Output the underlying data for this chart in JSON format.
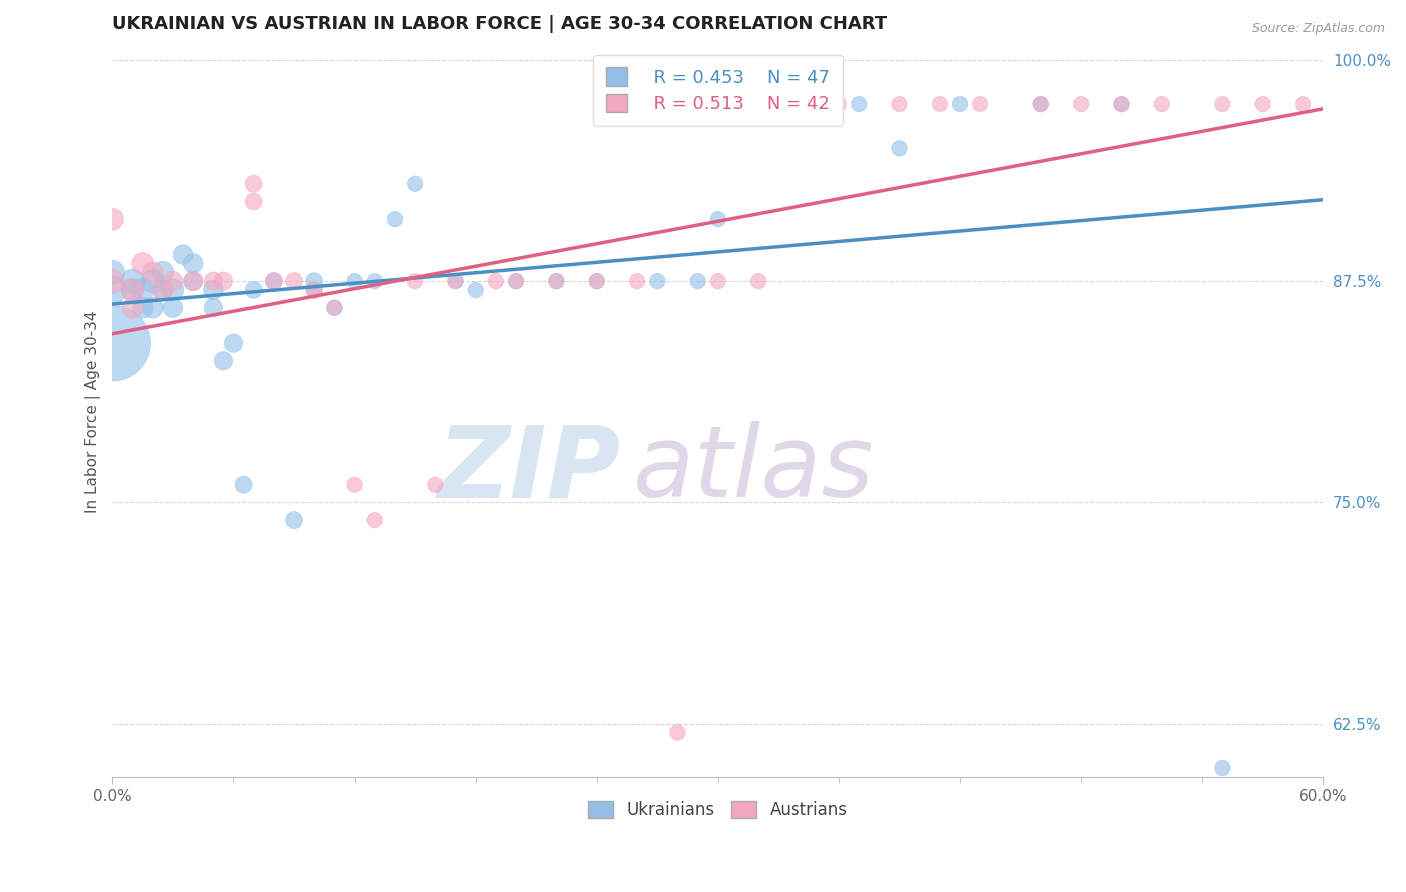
{
  "title": "UKRAINIAN VS AUSTRIAN IN LABOR FORCE | AGE 30-34 CORRELATION CHART",
  "source_text": "Source: ZipAtlas.com",
  "ylabel": "In Labor Force | Age 30-34",
  "xlim": [
    0.0,
    0.6
  ],
  "ylim": [
    0.595,
    1.008
  ],
  "yticks": [
    0.625,
    0.75,
    0.875,
    1.0
  ],
  "ytick_labels": [
    "62.5%",
    "75.0%",
    "87.5%",
    "100.0%"
  ],
  "xtick_positions": [
    0.0,
    0.6
  ],
  "xtick_labels": [
    "0.0%",
    "60.0%"
  ],
  "legend_r_blue": "R = 0.453",
  "legend_n_blue": "N = 47",
  "legend_r_pink": "R = 0.513",
  "legend_n_pink": "N = 42",
  "legend_label_blue": "Ukrainians",
  "legend_label_pink": "Austrians",
  "blue_color": "#92C0E8",
  "pink_color": "#F4A8C0",
  "blue_line_color": "#4A90C4",
  "pink_line_color": "#E06080",
  "watermark_zi_color": "#B8D0E8",
  "watermark_atlas_color": "#C8B8D8",
  "title_fontsize": 13,
  "axis_label_fontsize": 11,
  "tick_fontsize": 11,
  "blue_x": [
    0.0,
    0.0,
    0.0,
    0.01,
    0.01,
    0.015,
    0.015,
    0.02,
    0.02,
    0.025,
    0.025,
    0.03,
    0.03,
    0.035,
    0.04,
    0.04,
    0.05,
    0.05,
    0.055,
    0.06,
    0.065,
    0.07,
    0.08,
    0.09,
    0.1,
    0.1,
    0.11,
    0.12,
    0.13,
    0.14,
    0.15,
    0.17,
    0.18,
    0.2,
    0.22,
    0.24,
    0.27,
    0.29,
    0.3,
    0.32,
    0.34,
    0.37,
    0.39,
    0.42,
    0.46,
    0.5,
    0.55
  ],
  "blue_y": [
    0.84,
    0.87,
    0.88,
    0.875,
    0.87,
    0.87,
    0.86,
    0.875,
    0.86,
    0.88,
    0.87,
    0.87,
    0.86,
    0.89,
    0.885,
    0.875,
    0.87,
    0.86,
    0.83,
    0.84,
    0.76,
    0.87,
    0.875,
    0.74,
    0.875,
    0.87,
    0.86,
    0.875,
    0.875,
    0.91,
    0.93,
    0.875,
    0.87,
    0.875,
    0.875,
    0.875,
    0.875,
    0.875,
    0.91,
    0.97,
    0.975,
    0.975,
    0.95,
    0.975,
    0.975,
    0.975,
    0.6
  ],
  "blue_sizes": [
    600,
    80,
    60,
    60,
    50,
    55,
    45,
    55,
    45,
    50,
    40,
    50,
    40,
    40,
    40,
    35,
    40,
    35,
    35,
    35,
    30,
    30,
    30,
    30,
    30,
    25,
    25,
    25,
    25,
    25,
    25,
    25,
    25,
    25,
    25,
    25,
    25,
    25,
    25,
    25,
    25,
    25,
    25,
    25,
    25,
    25,
    25
  ],
  "pink_x": [
    0.0,
    0.0,
    0.01,
    0.01,
    0.015,
    0.02,
    0.025,
    0.03,
    0.04,
    0.05,
    0.055,
    0.07,
    0.07,
    0.08,
    0.09,
    0.1,
    0.11,
    0.12,
    0.13,
    0.15,
    0.16,
    0.17,
    0.19,
    0.2,
    0.22,
    0.24,
    0.26,
    0.28,
    0.3,
    0.32,
    0.35,
    0.36,
    0.39,
    0.41,
    0.43,
    0.46,
    0.48,
    0.5,
    0.52,
    0.55,
    0.57,
    0.59
  ],
  "pink_y": [
    0.875,
    0.91,
    0.87,
    0.86,
    0.885,
    0.88,
    0.87,
    0.875,
    0.875,
    0.875,
    0.875,
    0.92,
    0.93,
    0.875,
    0.875,
    0.87,
    0.86,
    0.76,
    0.74,
    0.875,
    0.76,
    0.875,
    0.875,
    0.875,
    0.875,
    0.875,
    0.875,
    0.62,
    0.875,
    0.875,
    0.975,
    0.975,
    0.975,
    0.975,
    0.975,
    0.975,
    0.975,
    0.975,
    0.975,
    0.975,
    0.975,
    0.975
  ],
  "pink_sizes": [
    60,
    50,
    55,
    45,
    50,
    45,
    45,
    40,
    40,
    35,
    35,
    30,
    30,
    30,
    30,
    30,
    25,
    25,
    25,
    25,
    25,
    25,
    25,
    25,
    25,
    25,
    25,
    25,
    25,
    25,
    25,
    25,
    25,
    25,
    25,
    25,
    25,
    25,
    25,
    25,
    25,
    25
  ]
}
